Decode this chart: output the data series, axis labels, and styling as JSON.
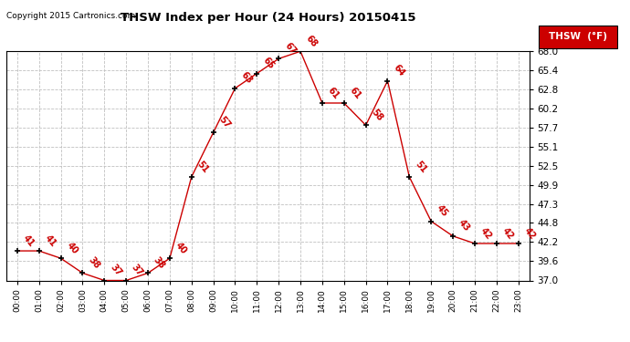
{
  "title": "THSW Index per Hour (24 Hours) 20150415",
  "copyright": "Copyright 2015 Cartronics.com",
  "legend_label": "THSW  (°F)",
  "hours": [
    0,
    1,
    2,
    3,
    4,
    5,
    6,
    7,
    8,
    9,
    10,
    11,
    12,
    13,
    14,
    15,
    16,
    17,
    18,
    19,
    20,
    21,
    22,
    23
  ],
  "values": [
    41,
    41,
    40,
    38,
    37,
    37,
    38,
    40,
    51,
    57,
    63,
    65,
    67,
    68,
    61,
    61,
    58,
    64,
    51,
    45,
    43,
    42,
    42,
    42
  ],
  "ylim": [
    37.0,
    68.0
  ],
  "yticks": [
    37.0,
    39.6,
    42.2,
    44.8,
    47.3,
    49.9,
    52.5,
    55.1,
    57.7,
    60.2,
    62.8,
    65.4,
    68.0
  ],
  "line_color": "#cc0000",
  "marker_color": "#000000",
  "bg_color": "#ffffff",
  "grid_color": "#c0c0c0",
  "title_color": "#000000",
  "label_color": "#cc0000",
  "copyright_color": "#000000",
  "legend_bg": "#cc0000",
  "legend_text_color": "#ffffff"
}
